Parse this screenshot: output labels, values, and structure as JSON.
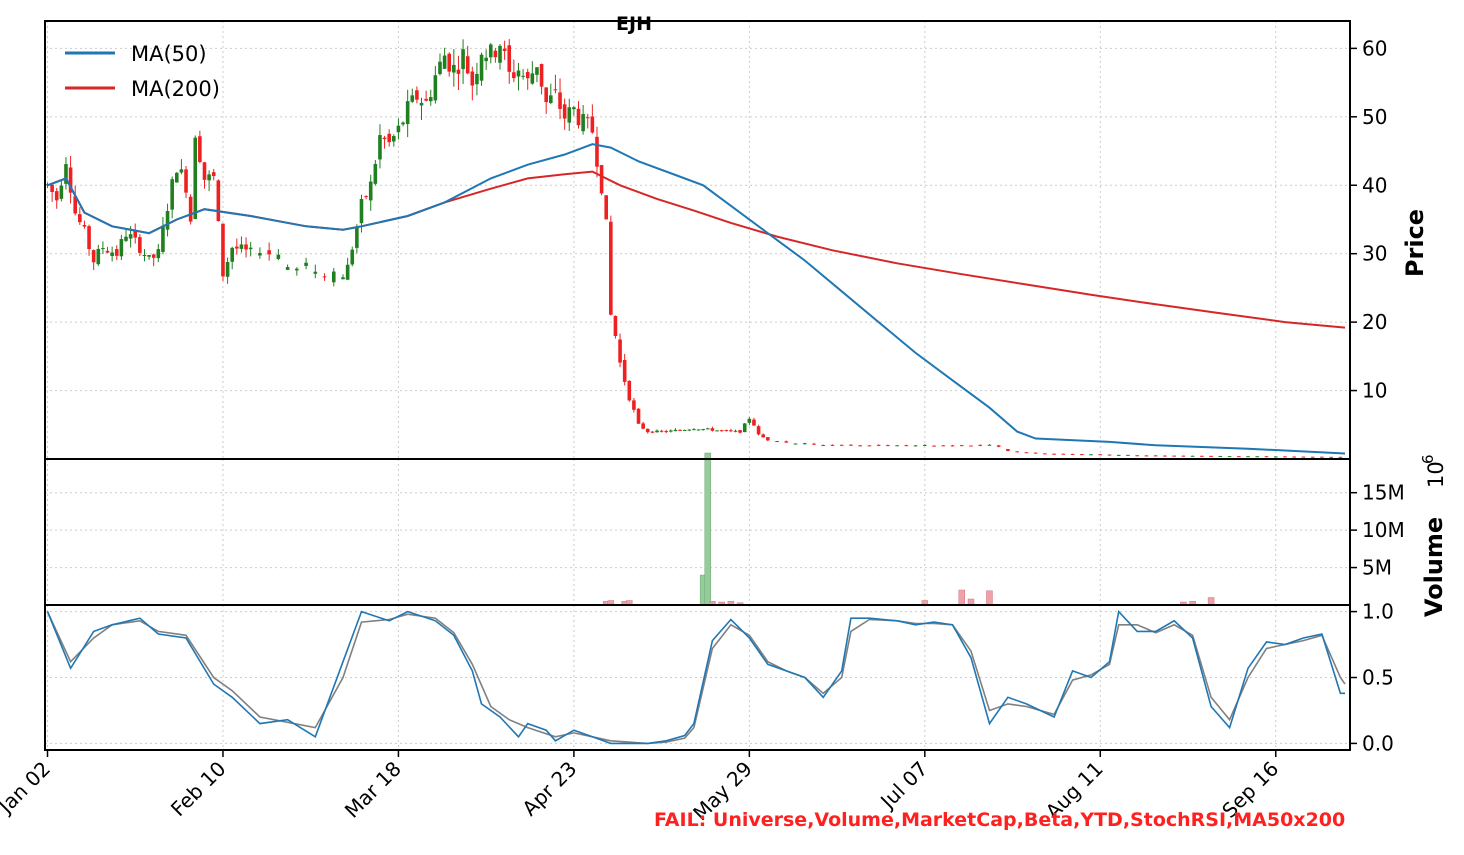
{
  "title": "EJH",
  "fail_text": "FAIL: Universe,Volume,MarketCap,Beta,YTD,StochRSI,MA50x200",
  "fail_color": "#ff2020",
  "colors": {
    "up": "#208020",
    "down": "#ee2020",
    "ma50": "#1f77b4",
    "ma200": "#d62728",
    "vol_up": "#96cc9a",
    "vol_down": "#f0a0a8",
    "stoch_k": "#1f77b4",
    "stoch_d": "#808080"
  },
  "chart_data": {
    "type": "candlestick",
    "x_tick_labels": [
      "Jan 02",
      "Feb 10",
      "Mar 18",
      "Apr 23",
      "May 29",
      "Jul 07",
      "Aug 11",
      "Sep 16"
    ],
    "x_tick_index": [
      0,
      38,
      76,
      114,
      152,
      190,
      228,
      266
    ],
    "n_sessions": 281,
    "price_axis": {
      "label": "Price",
      "ylim": [
        0,
        64
      ],
      "ticks": [
        10,
        20,
        30,
        40,
        50,
        60
      ]
    },
    "volume_axis": {
      "label": "Volume",
      "multiplier_label": "10",
      "multiplier_exp": "6",
      "ylim": [
        0,
        19.5
      ],
      "ticks": [
        5,
        10,
        15
      ],
      "tick_labels": [
        "5M",
        "10M",
        "15M"
      ]
    },
    "stoch_axis": {
      "ylim": [
        -0.05,
        1.05
      ],
      "ticks": [
        0,
        0.5,
        1
      ],
      "tick_labels": [
        "0.0",
        "0.5",
        "1.0"
      ]
    },
    "legend": [
      {
        "name": "MA(50)",
        "key": "ma50"
      },
      {
        "name": "MA(200)",
        "key": "ma200"
      }
    ],
    "price_anchors": [
      [
        0,
        40
      ],
      [
        2,
        38
      ],
      [
        4,
        44
      ],
      [
        6,
        36
      ],
      [
        8,
        33
      ],
      [
        10,
        29
      ],
      [
        12,
        31
      ],
      [
        15,
        30
      ],
      [
        17,
        33
      ],
      [
        20,
        31
      ],
      [
        22,
        29
      ],
      [
        24,
        30
      ],
      [
        26,
        37
      ],
      [
        28,
        43
      ],
      [
        30,
        40
      ],
      [
        31,
        35
      ],
      [
        32,
        48
      ],
      [
        34,
        41
      ],
      [
        36,
        41
      ],
      [
        38,
        27
      ],
      [
        40,
        31
      ],
      [
        44,
        30
      ],
      [
        48,
        30
      ],
      [
        52,
        28
      ],
      [
        56,
        28
      ],
      [
        60,
        27
      ],
      [
        64,
        27
      ],
      [
        65,
        28
      ],
      [
        66,
        31
      ],
      [
        68,
        37
      ],
      [
        70,
        40
      ],
      [
        72,
        47
      ],
      [
        74,
        46
      ],
      [
        76,
        48
      ],
      [
        78,
        51
      ],
      [
        80,
        53
      ],
      [
        82,
        52
      ],
      [
        84,
        56
      ],
      [
        86,
        59
      ],
      [
        88,
        57
      ],
      [
        90,
        59
      ],
      [
        92,
        55
      ],
      [
        94,
        60
      ],
      [
        96,
        59
      ],
      [
        98,
        61
      ],
      [
        100,
        56
      ],
      [
        102,
        57
      ],
      [
        104,
        55
      ],
      [
        106,
        58
      ],
      [
        108,
        52
      ],
      [
        110,
        53
      ],
      [
        112,
        50
      ],
      [
        114,
        51
      ],
      [
        116,
        49
      ],
      [
        118,
        48
      ],
      [
        119,
        44
      ],
      [
        120,
        40
      ],
      [
        121,
        34
      ],
      [
        122,
        21
      ],
      [
        123,
        18
      ],
      [
        124,
        14
      ],
      [
        126,
        9
      ],
      [
        127,
        7
      ],
      [
        128,
        5
      ],
      [
        130,
        4
      ],
      [
        134,
        4
      ],
      [
        140,
        4.5
      ],
      [
        148,
        4
      ],
      [
        150,
        4
      ],
      [
        152,
        6
      ],
      [
        153,
        5
      ],
      [
        154,
        3.5
      ],
      [
        156,
        2.8
      ],
      [
        160,
        2.4
      ],
      [
        170,
        2
      ],
      [
        185,
        2
      ],
      [
        195,
        2
      ],
      [
        200,
        2
      ],
      [
        205,
        2
      ],
      [
        208,
        1.2
      ],
      [
        215,
        0.8
      ],
      [
        240,
        0.5
      ],
      [
        260,
        0.4
      ],
      [
        281,
        0.3
      ]
    ],
    "ma50": [
      [
        0,
        40
      ],
      [
        4,
        41
      ],
      [
        8,
        36
      ],
      [
        14,
        34
      ],
      [
        22,
        33
      ],
      [
        28,
        35
      ],
      [
        34,
        36.5
      ],
      [
        44,
        35.5
      ],
      [
        56,
        34
      ],
      [
        64,
        33.5
      ],
      [
        68,
        34
      ],
      [
        78,
        35.5
      ],
      [
        86,
        37.5
      ],
      [
        96,
        41
      ],
      [
        104,
        43
      ],
      [
        112,
        44.5
      ],
      [
        118,
        46
      ],
      [
        122,
        45.5
      ],
      [
        128,
        43.5
      ],
      [
        136,
        41.5
      ],
      [
        142,
        40
      ],
      [
        148,
        37
      ],
      [
        156,
        33
      ],
      [
        164,
        29
      ],
      [
        172,
        24.5
      ],
      [
        180,
        20
      ],
      [
        188,
        15.5
      ],
      [
        196,
        11.5
      ],
      [
        204,
        7.5
      ],
      [
        210,
        4
      ],
      [
        214,
        3
      ],
      [
        230,
        2.5
      ],
      [
        240,
        2
      ],
      [
        260,
        1.5
      ],
      [
        281,
        0.8
      ]
    ],
    "ma200": [
      [
        0,
        40
      ],
      [
        4,
        41
      ],
      [
        8,
        36
      ],
      [
        14,
        34
      ],
      [
        22,
        33
      ],
      [
        28,
        35
      ],
      [
        34,
        36.5
      ],
      [
        44,
        35.5
      ],
      [
        56,
        34
      ],
      [
        64,
        33.5
      ],
      [
        68,
        34
      ],
      [
        78,
        35.5
      ],
      [
        86,
        37.5
      ],
      [
        96,
        39.5
      ],
      [
        104,
        41
      ],
      [
        112,
        41.6
      ],
      [
        118,
        42
      ],
      [
        124,
        40
      ],
      [
        132,
        38
      ],
      [
        140,
        36.3
      ],
      [
        148,
        34.5
      ],
      [
        158,
        32.5
      ],
      [
        170,
        30.5
      ],
      [
        184,
        28.6
      ],
      [
        198,
        27
      ],
      [
        212,
        25.5
      ],
      [
        226,
        24
      ],
      [
        240,
        22.6
      ],
      [
        254,
        21.3
      ],
      [
        268,
        20
      ],
      [
        281,
        19.2
      ]
    ],
    "volume_spikes": [
      [
        142,
        4.0,
        "up"
      ],
      [
        143,
        20.3,
        "up"
      ],
      [
        144,
        0.5,
        "down"
      ],
      [
        146,
        0.4,
        "down"
      ],
      [
        148,
        0.5,
        "down"
      ],
      [
        150,
        0.3,
        "down"
      ],
      [
        121,
        0.5,
        "down"
      ],
      [
        122,
        0.6,
        "down"
      ],
      [
        125,
        0.5,
        "down"
      ],
      [
        126,
        0.6,
        "down"
      ],
      [
        190,
        0.6,
        "down"
      ],
      [
        198,
        2.0,
        "down"
      ],
      [
        200,
        0.8,
        "down"
      ],
      [
        204,
        1.9,
        "down"
      ],
      [
        246,
        0.4,
        "down"
      ],
      [
        248,
        0.5,
        "down"
      ],
      [
        252,
        1.0,
        "down"
      ]
    ],
    "stoch_k": [
      [
        0,
        1.0
      ],
      [
        5,
        0.57
      ],
      [
        10,
        0.85
      ],
      [
        14,
        0.9
      ],
      [
        20,
        0.95
      ],
      [
        24,
        0.83
      ],
      [
        30,
        0.8
      ],
      [
        36,
        0.45
      ],
      [
        40,
        0.35
      ],
      [
        46,
        0.15
      ],
      [
        52,
        0.18
      ],
      [
        58,
        0.05
      ],
      [
        64,
        0.62
      ],
      [
        68,
        1.0
      ],
      [
        74,
        0.93
      ],
      [
        78,
        1.0
      ],
      [
        84,
        0.93
      ],
      [
        88,
        0.82
      ],
      [
        92,
        0.55
      ],
      [
        94,
        0.3
      ],
      [
        98,
        0.2
      ],
      [
        102,
        0.05
      ],
      [
        104,
        0.15
      ],
      [
        108,
        0.1
      ],
      [
        110,
        0.02
      ],
      [
        114,
        0.1
      ],
      [
        118,
        0.05
      ],
      [
        122,
        0.0
      ],
      [
        130,
        0.0
      ],
      [
        134,
        0.02
      ],
      [
        138,
        0.06
      ],
      [
        140,
        0.15
      ],
      [
        144,
        0.78
      ],
      [
        148,
        0.94
      ],
      [
        152,
        0.8
      ],
      [
        156,
        0.6
      ],
      [
        160,
        0.55
      ],
      [
        164,
        0.5
      ],
      [
        168,
        0.35
      ],
      [
        172,
        0.55
      ],
      [
        174,
        0.95
      ],
      [
        178,
        0.95
      ],
      [
        184,
        0.93
      ],
      [
        188,
        0.9
      ],
      [
        192,
        0.92
      ],
      [
        196,
        0.9
      ],
      [
        200,
        0.65
      ],
      [
        204,
        0.15
      ],
      [
        208,
        0.35
      ],
      [
        212,
        0.3
      ],
      [
        218,
        0.2
      ],
      [
        222,
        0.55
      ],
      [
        226,
        0.5
      ],
      [
        230,
        0.62
      ],
      [
        232,
        1.0
      ],
      [
        236,
        0.85
      ],
      [
        240,
        0.85
      ],
      [
        244,
        0.93
      ],
      [
        248,
        0.8
      ],
      [
        252,
        0.28
      ],
      [
        256,
        0.12
      ],
      [
        260,
        0.57
      ],
      [
        264,
        0.77
      ],
      [
        268,
        0.75
      ],
      [
        272,
        0.8
      ],
      [
        276,
        0.83
      ],
      [
        280,
        0.38
      ],
      [
        281,
        0.38
      ]
    ],
    "stoch_d": [
      [
        0,
        1.0
      ],
      [
        5,
        0.62
      ],
      [
        10,
        0.8
      ],
      [
        14,
        0.9
      ],
      [
        20,
        0.93
      ],
      [
        24,
        0.85
      ],
      [
        30,
        0.82
      ],
      [
        36,
        0.5
      ],
      [
        40,
        0.4
      ],
      [
        46,
        0.2
      ],
      [
        52,
        0.16
      ],
      [
        58,
        0.12
      ],
      [
        64,
        0.5
      ],
      [
        68,
        0.92
      ],
      [
        74,
        0.94
      ],
      [
        78,
        0.98
      ],
      [
        84,
        0.95
      ],
      [
        88,
        0.84
      ],
      [
        92,
        0.6
      ],
      [
        96,
        0.28
      ],
      [
        100,
        0.18
      ],
      [
        104,
        0.12
      ],
      [
        110,
        0.05
      ],
      [
        114,
        0.08
      ],
      [
        118,
        0.05
      ],
      [
        122,
        0.02
      ],
      [
        130,
        0.0
      ],
      [
        134,
        0.01
      ],
      [
        138,
        0.04
      ],
      [
        140,
        0.12
      ],
      [
        144,
        0.72
      ],
      [
        148,
        0.9
      ],
      [
        152,
        0.82
      ],
      [
        156,
        0.62
      ],
      [
        160,
        0.55
      ],
      [
        164,
        0.5
      ],
      [
        168,
        0.38
      ],
      [
        172,
        0.5
      ],
      [
        174,
        0.85
      ],
      [
        178,
        0.94
      ],
      [
        184,
        0.93
      ],
      [
        188,
        0.91
      ],
      [
        192,
        0.91
      ],
      [
        196,
        0.9
      ],
      [
        200,
        0.7
      ],
      [
        204,
        0.25
      ],
      [
        208,
        0.3
      ],
      [
        212,
        0.28
      ],
      [
        218,
        0.22
      ],
      [
        222,
        0.48
      ],
      [
        226,
        0.52
      ],
      [
        230,
        0.6
      ],
      [
        232,
        0.9
      ],
      [
        236,
        0.9
      ],
      [
        240,
        0.84
      ],
      [
        244,
        0.9
      ],
      [
        248,
        0.82
      ],
      [
        252,
        0.35
      ],
      [
        256,
        0.18
      ],
      [
        260,
        0.5
      ],
      [
        264,
        0.72
      ],
      [
        268,
        0.75
      ],
      [
        272,
        0.78
      ],
      [
        276,
        0.82
      ],
      [
        280,
        0.5
      ],
      [
        281,
        0.45
      ]
    ]
  }
}
